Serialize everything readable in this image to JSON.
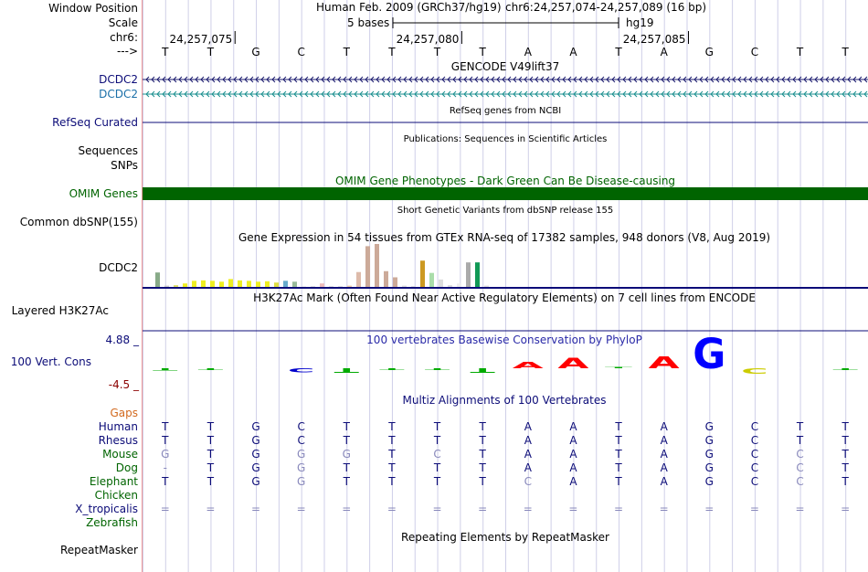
{
  "labels": [
    {
      "name": "window-position-label",
      "text": "Window Position",
      "color": "#000000"
    },
    {
      "name": "scale-label",
      "text": "Scale",
      "color": "#000000"
    },
    {
      "name": "chrom-label",
      "text": "chr6:",
      "color": "#000000"
    },
    {
      "name": "strand-label",
      "text": "--->",
      "color": "#000000"
    },
    {
      "name": "dcdc2-gencode-label-1",
      "text": "DCDC2",
      "color": "#0c0c78"
    },
    {
      "name": "dcdc2-gencode-label-2",
      "text": "DCDC2",
      "color": "#1a6fa8"
    },
    {
      "name": "refseq-curated-label",
      "text": "RefSeq Curated",
      "color": "#0c0c78"
    },
    {
      "name": "sequences-label",
      "text": "Sequences",
      "color": "#000000"
    },
    {
      "name": "snps-label",
      "text": "SNPs",
      "color": "#000000"
    },
    {
      "name": "omim-genes-label",
      "text": "OMIM Genes",
      "color": "#006400"
    },
    {
      "name": "common-dbsnp-label",
      "text": "Common dbSNP(155)",
      "color": "#000000"
    },
    {
      "name": "gtex-dcdc2-label",
      "text": "DCDC2",
      "color": "#000000"
    },
    {
      "name": "layered-h3k27ac-label",
      "text": "Layered H3K27Ac",
      "color": "#000000"
    },
    {
      "name": "phylop-max-label",
      "text": "4.88 _",
      "color": "#0c0c78"
    },
    {
      "name": "vert-cons-label",
      "text": "100 Vert. Cons",
      "color": "#0c0c78"
    },
    {
      "name": "phylop-min-label",
      "text": "-4.5 _",
      "color": "#8b0000"
    },
    {
      "name": "gaps-label",
      "text": "Gaps",
      "color": "#d2691e"
    },
    {
      "name": "species-human-label",
      "text": "Human",
      "color": "#0c0c78"
    },
    {
      "name": "species-rhesus-label",
      "text": "Rhesus",
      "color": "#0c0c78"
    },
    {
      "name": "species-mouse-label",
      "text": "Mouse",
      "color": "#006400"
    },
    {
      "name": "species-dog-label",
      "text": "Dog",
      "color": "#006400"
    },
    {
      "name": "species-elephant-label",
      "text": "Elephant",
      "color": "#006400"
    },
    {
      "name": "species-chicken-label",
      "text": "Chicken",
      "color": "#006400"
    },
    {
      "name": "species-xtropicalis-label",
      "text": "X_tropicalis",
      "color": "#0c0c78"
    },
    {
      "name": "species-zebrafish-label",
      "text": "Zebrafish",
      "color": "#006400"
    },
    {
      "name": "repeatmasker-label",
      "text": "RepeatMasker",
      "color": "#000000"
    }
  ],
  "header": {
    "assembly_text": "Human Feb. 2009 (GRCh37/hg19)",
    "position_text": "chr6:24,257,074-24,257,089 (16 bp)",
    "scale_text": "5 bases",
    "db_text": "hg19",
    "coord_ticks": [
      "24,257,075",
      "24,257,080",
      "24,257,085"
    ]
  },
  "bases": [
    "T",
    "T",
    "G",
    "C",
    "T",
    "T",
    "T",
    "T",
    "A",
    "A",
    "T",
    "A",
    "G",
    "C",
    "T",
    "T"
  ],
  "track_titles": {
    "gencode": "GENCODE V49lift37",
    "refseq": "RefSeq genes from NCBI",
    "publications": "Publications: Sequences in Scientific Articles",
    "omim": "OMIM Gene Phenotypes - Dark Green Can Be Disease-causing",
    "dbsnp": "Short Genetic Variants from dbSNP release 155",
    "gtex": "Gene Expression in 54 tissues from GTEx RNA-seq of 17382 samples, 948 donors (V8, Aug 2019)",
    "h3k27ac": "H3K27Ac Mark (Often Found Near Active Regulatory Elements) on 7 cell lines from ENCODE",
    "phylop": "100 vertebrates Basewise Conservation by PhyloP",
    "multiz": "Multiz Alignments of 100 Vertebrates",
    "repeatmasker": "Repeating Elements by RepeatMasker"
  },
  "alignments": [
    {
      "species": "Human",
      "bases": [
        "T",
        "T",
        "G",
        "C",
        "T",
        "T",
        "T",
        "T",
        "A",
        "A",
        "T",
        "A",
        "G",
        "C",
        "T",
        "T"
      ]
    },
    {
      "species": "Rhesus",
      "bases": [
        "T",
        "T",
        "G",
        "C",
        "T",
        "T",
        "T",
        "T",
        "A",
        "A",
        "T",
        "A",
        "G",
        "C",
        "T",
        "T"
      ]
    },
    {
      "species": "Mouse",
      "bases": [
        "G",
        "T",
        "G",
        "G",
        "G",
        "T",
        "C",
        "T",
        "A",
        "A",
        "T",
        "A",
        "G",
        "C",
        "C",
        "T"
      ]
    },
    {
      "species": "Dog",
      "bases": [
        "-",
        "T",
        "G",
        "G",
        "T",
        "T",
        "T",
        "T",
        "A",
        "A",
        "T",
        "A",
        "G",
        "C",
        "C",
        "T"
      ]
    },
    {
      "species": "Elephant",
      "bases": [
        "T",
        "T",
        "G",
        "G",
        "T",
        "T",
        "T",
        "T",
        "C",
        "A",
        "T",
        "A",
        "G",
        "C",
        "C",
        "T"
      ]
    },
    {
      "species": "Chicken",
      "bases": [
        "",
        "",
        "",
        "",
        "",
        "",
        "",
        "",
        "",
        "",
        "",
        "",
        "",
        "",
        "",
        ""
      ]
    },
    {
      "species": "X_tropicalis",
      "bases": [
        "=",
        "=",
        "=",
        "=",
        "=",
        "=",
        "=",
        "=",
        "=",
        "=",
        "=",
        "=",
        "=",
        "=",
        "=",
        "="
      ]
    },
    {
      "species": "Zebrafish",
      "bases": [
        "",
        "",
        "",
        "",
        "",
        "",
        "",
        "",
        "",
        "",
        "",
        "",
        "",
        "",
        "",
        ""
      ]
    }
  ],
  "alignment_dim": [
    [
      false,
      false,
      false,
      false,
      false,
      false,
      false,
      false,
      false,
      false,
      false,
      false,
      false,
      false,
      false,
      false
    ],
    [
      false,
      false,
      false,
      false,
      false,
      false,
      false,
      false,
      false,
      false,
      false,
      false,
      false,
      false,
      false,
      false
    ],
    [
      true,
      false,
      false,
      true,
      true,
      false,
      true,
      false,
      false,
      false,
      false,
      false,
      false,
      false,
      true,
      false
    ],
    [
      true,
      false,
      false,
      true,
      false,
      false,
      false,
      false,
      false,
      false,
      false,
      false,
      false,
      false,
      true,
      false
    ],
    [
      false,
      false,
      false,
      true,
      false,
      false,
      false,
      false,
      true,
      false,
      false,
      false,
      false,
      false,
      true,
      false
    ],
    [
      false,
      false,
      false,
      false,
      false,
      false,
      false,
      false,
      false,
      false,
      false,
      false,
      false,
      false,
      false,
      false
    ],
    [
      true,
      true,
      true,
      true,
      true,
      true,
      true,
      true,
      true,
      true,
      true,
      true,
      true,
      true,
      true,
      true
    ],
    [
      false,
      false,
      false,
      false,
      false,
      false,
      false,
      false,
      false,
      false,
      false,
      false,
      false,
      false,
      false,
      false
    ]
  ],
  "gtex_bars": [
    {
      "value": 0.35,
      "color": "#88aa88"
    },
    {
      "value": 0.05,
      "color": "#cccccc"
    },
    {
      "value": 0.06,
      "color": "#dddd66"
    },
    {
      "value": 0.1,
      "color": "#eeee22"
    },
    {
      "value": 0.16,
      "color": "#eeee22"
    },
    {
      "value": 0.17,
      "color": "#eeee22"
    },
    {
      "value": 0.16,
      "color": "#eeee22"
    },
    {
      "value": 0.14,
      "color": "#eeee22"
    },
    {
      "value": 0.2,
      "color": "#eeee22"
    },
    {
      "value": 0.17,
      "color": "#eeee22"
    },
    {
      "value": 0.16,
      "color": "#eeee22"
    },
    {
      "value": 0.14,
      "color": "#eeee22"
    },
    {
      "value": 0.15,
      "color": "#eeee22"
    },
    {
      "value": 0.12,
      "color": "#dddd44"
    },
    {
      "value": 0.16,
      "color": "#66aacc"
    },
    {
      "value": 0.14,
      "color": "#99bb99"
    },
    {
      "value": 0.03,
      "color": "#dddddd"
    },
    {
      "value": 0.04,
      "color": "#dddddd"
    },
    {
      "value": 0.1,
      "color": "#eebbbb"
    },
    {
      "value": 0.04,
      "color": "#dddddd"
    },
    {
      "value": 0.04,
      "color": "#dddddd"
    },
    {
      "value": 0.05,
      "color": "#eeccaa"
    },
    {
      "value": 0.36,
      "color": "#ddbbaa"
    },
    {
      "value": 0.95,
      "color": "#ccaa99"
    },
    {
      "value": 1.0,
      "color": "#ccaa99"
    },
    {
      "value": 0.38,
      "color": "#ccaa99"
    },
    {
      "value": 0.24,
      "color": "#ccaa99"
    },
    {
      "value": 0.05,
      "color": "#dddddd"
    },
    {
      "value": 0.04,
      "color": "#dddddd"
    },
    {
      "value": 0.62,
      "color": "#cc9922"
    },
    {
      "value": 0.34,
      "color": "#aaddaa"
    },
    {
      "value": 0.19,
      "color": "#dddddd"
    },
    {
      "value": 0.06,
      "color": "#dddddd"
    },
    {
      "value": 0.1,
      "color": "#eeeeee"
    },
    {
      "value": 0.58,
      "color": "#aaaaaa"
    },
    {
      "value": 0.58,
      "color": "#119955"
    },
    {
      "value": 0.05,
      "color": "#dddddd"
    }
  ],
  "phylop": [
    {
      "base": "T",
      "score": -0.6,
      "color": "#00aa00"
    },
    {
      "base": "T",
      "score": -0.4,
      "color": "#00aa00"
    },
    {
      "base": "G",
      "score": 0.0,
      "color": "#ffffff"
    },
    {
      "base": "C",
      "score": -1.0,
      "color": "#0000cc"
    },
    {
      "base": "T",
      "score": -1.2,
      "color": "#00aa00"
    },
    {
      "base": "T",
      "score": -0.5,
      "color": "#00aa00"
    },
    {
      "base": "T",
      "score": -0.5,
      "color": "#00aa00"
    },
    {
      "base": "T",
      "score": -1.2,
      "color": "#00aa00"
    },
    {
      "base": "A",
      "score": 1.0,
      "color": "#ff0000"
    },
    {
      "base": "A",
      "score": 1.6,
      "color": "#ff0000"
    },
    {
      "base": "T",
      "score": 0.2,
      "color": "#00aa00"
    },
    {
      "base": "A",
      "score": 1.8,
      "color": "#ff0000"
    },
    {
      "base": "G",
      "score": 4.5,
      "color": "#0000ff"
    },
    {
      "base": "C",
      "score": -1.4,
      "color": "#cccc00"
    },
    {
      "base": "T",
      "score": 0.0,
      "color": "#ffffff"
    },
    {
      "base": "T",
      "score": -0.5,
      "color": "#00aa00"
    }
  ],
  "colors": {
    "gencode_line": "#1a1a6e",
    "gencode_line2": "#1a8f8f",
    "refseq_line": "#0c0c78",
    "omim_bar": "#006400",
    "grid": "#cfcfe8",
    "base_text": "#0c0c78"
  }
}
